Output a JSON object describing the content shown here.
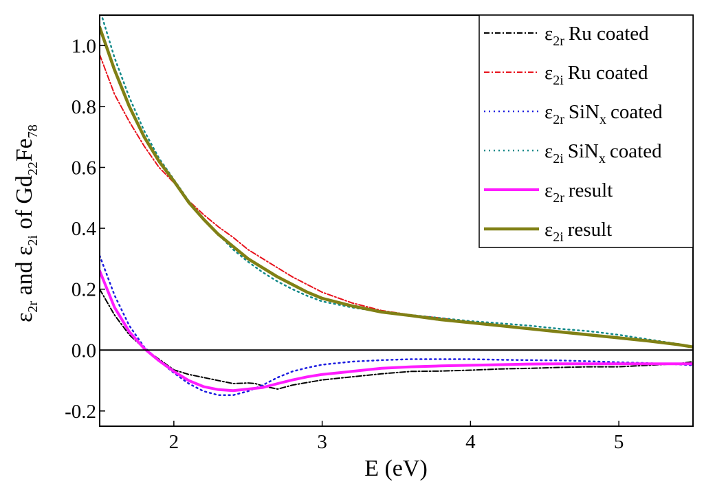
{
  "chart_data": {
    "type": "line",
    "title": "",
    "xlabel": "E (eV)",
    "ylabel": {
      "prefix_symbol": "ε",
      "prefix_sub": "2r",
      "middle": " and ",
      "second_symbol": "ε",
      "second_sub": "2i",
      "of_text": " of Gd",
      "gd_sub": "22",
      "fe_text": "Fe",
      "fe_sub": "78"
    },
    "xlim": [
      1.5,
      5.5
    ],
    "ylim": [
      -0.25,
      1.1
    ],
    "xticks": [
      2,
      3,
      4,
      5
    ],
    "xtick_labels": [
      "2",
      "3",
      "4",
      "5"
    ],
    "yticks": [
      -0.2,
      0.0,
      0.2,
      0.4,
      0.6,
      0.8,
      1.0
    ],
    "ytick_labels": [
      "-0.2",
      "0.0",
      "0.2",
      "0.4",
      "0.6",
      "0.8",
      "1.0"
    ],
    "zero_line": 0.0,
    "legend_position": "top-right",
    "series": [
      {
        "name": "ε2r Ru coated",
        "symbol": "ε",
        "sub": "2r",
        "label": "Ru coated",
        "label_sub": "",
        "label_tail": "",
        "color": "#000000",
        "dash": "8,3,2,3",
        "width": 2,
        "x": [
          1.5,
          1.6,
          1.7,
          1.8,
          1.9,
          2.0,
          2.1,
          2.2,
          2.3,
          2.4,
          2.5,
          2.55,
          2.6,
          2.7,
          2.8,
          3.0,
          3.2,
          3.4,
          3.6,
          3.8,
          4.0,
          4.2,
          4.4,
          4.6,
          4.8,
          5.0,
          5.2,
          5.4,
          5.5
        ],
        "y": [
          0.2,
          0.115,
          0.05,
          0.005,
          -0.03,
          -0.065,
          -0.08,
          -0.09,
          -0.1,
          -0.11,
          -0.108,
          -0.11,
          -0.118,
          -0.128,
          -0.115,
          -0.098,
          -0.088,
          -0.078,
          -0.07,
          -0.069,
          -0.066,
          -0.062,
          -0.06,
          -0.057,
          -0.055,
          -0.055,
          -0.05,
          -0.045,
          -0.038
        ]
      },
      {
        "name": "ε2i Ru coated",
        "symbol": "ε",
        "sub": "2i",
        "label": "Ru coated",
        "label_sub": "",
        "label_tail": "",
        "color": "#e8121c",
        "dash": "8,3,2,3",
        "width": 2,
        "x": [
          1.5,
          1.6,
          1.7,
          1.8,
          1.9,
          2.0,
          2.1,
          2.2,
          2.3,
          2.4,
          2.5,
          2.6,
          2.7,
          2.8,
          2.9,
          3.0,
          3.2,
          3.4,
          3.6,
          3.8,
          4.0,
          4.2,
          4.4,
          4.6,
          4.8,
          5.0,
          5.2,
          5.4,
          5.5
        ],
        "y": [
          0.97,
          0.84,
          0.75,
          0.67,
          0.6,
          0.55,
          0.49,
          0.445,
          0.405,
          0.37,
          0.33,
          0.3,
          0.27,
          0.24,
          0.215,
          0.19,
          0.155,
          0.13,
          0.115,
          0.105,
          0.09,
          0.08,
          0.07,
          0.06,
          0.05,
          0.04,
          0.03,
          0.018,
          0.01
        ]
      },
      {
        "name": "ε2r SiNx coated",
        "symbol": "ε",
        "sub": "2r",
        "label": "SiN",
        "label_sub": "x",
        "label_tail": "coated",
        "color": "#1c1ce0",
        "dash": "2,5",
        "width": 2.5,
        "x": [
          1.5,
          1.6,
          1.7,
          1.8,
          1.9,
          2.0,
          2.1,
          2.2,
          2.3,
          2.4,
          2.5,
          2.6,
          2.7,
          2.8,
          2.9,
          3.0,
          3.2,
          3.4,
          3.6,
          3.8,
          4.0,
          4.2,
          4.4,
          4.6,
          4.8,
          5.0,
          5.2,
          5.4,
          5.5
        ],
        "y": [
          0.31,
          0.18,
          0.08,
          0.01,
          -0.035,
          -0.075,
          -0.11,
          -0.135,
          -0.148,
          -0.148,
          -0.135,
          -0.115,
          -0.09,
          -0.07,
          -0.058,
          -0.048,
          -0.038,
          -0.033,
          -0.03,
          -0.03,
          -0.03,
          -0.032,
          -0.033,
          -0.034,
          -0.037,
          -0.04,
          -0.043,
          -0.047,
          -0.05
        ]
      },
      {
        "name": "ε2i SiNx coated",
        "symbol": "ε",
        "sub": "2i",
        "label": "SiN",
        "label_sub": "x",
        "label_tail": "coated",
        "color": "#138a8a",
        "dash": "2,5",
        "width": 2.5,
        "x": [
          1.5,
          1.6,
          1.7,
          1.8,
          1.9,
          2.0,
          2.1,
          2.2,
          2.3,
          2.4,
          2.5,
          2.6,
          2.7,
          2.8,
          2.9,
          3.0,
          3.2,
          3.4,
          3.6,
          3.8,
          4.0,
          4.2,
          4.4,
          4.6,
          4.8,
          5.0,
          5.2,
          5.4,
          5.5
        ],
        "y": [
          1.12,
          0.96,
          0.83,
          0.72,
          0.63,
          0.56,
          0.49,
          0.43,
          0.38,
          0.33,
          0.29,
          0.255,
          0.225,
          0.2,
          0.178,
          0.16,
          0.14,
          0.125,
          0.115,
          0.105,
          0.095,
          0.088,
          0.08,
          0.07,
          0.062,
          0.05,
          0.035,
          0.02,
          0.012
        ]
      },
      {
        "name": "ε2r result",
        "symbol": "ε",
        "sub": "2r",
        "label": "result",
        "label_sub": "",
        "label_tail": "",
        "color": "#ff1cff",
        "dash": "",
        "width": 4,
        "x": [
          1.5,
          1.6,
          1.7,
          1.8,
          1.9,
          2.0,
          2.1,
          2.2,
          2.3,
          2.4,
          2.5,
          2.6,
          2.7,
          2.8,
          2.9,
          3.0,
          3.2,
          3.4,
          3.6,
          3.8,
          4.0,
          4.2,
          4.4,
          4.6,
          4.8,
          5.0,
          5.2,
          5.4,
          5.5
        ],
        "y": [
          0.26,
          0.14,
          0.06,
          0.005,
          -0.035,
          -0.07,
          -0.1,
          -0.12,
          -0.13,
          -0.133,
          -0.128,
          -0.123,
          -0.11,
          -0.098,
          -0.088,
          -0.08,
          -0.07,
          -0.06,
          -0.055,
          -0.052,
          -0.05,
          -0.048,
          -0.046,
          -0.045,
          -0.045,
          -0.045,
          -0.045,
          -0.045,
          -0.045
        ]
      },
      {
        "name": "ε2i result",
        "symbol": "ε",
        "sub": "2i",
        "label": "result",
        "label_sub": "",
        "label_tail": "",
        "color": "#808015",
        "dash": "",
        "width": 4.5,
        "x": [
          1.5,
          1.6,
          1.7,
          1.8,
          1.9,
          2.0,
          2.1,
          2.2,
          2.3,
          2.4,
          2.5,
          2.6,
          2.7,
          2.8,
          2.9,
          3.0,
          3.2,
          3.4,
          3.6,
          3.8,
          4.0,
          4.2,
          4.4,
          4.6,
          4.8,
          5.0,
          5.2,
          5.4,
          5.5
        ],
        "y": [
          1.06,
          0.92,
          0.8,
          0.7,
          0.62,
          0.555,
          0.485,
          0.43,
          0.38,
          0.34,
          0.3,
          0.27,
          0.24,
          0.215,
          0.19,
          0.17,
          0.145,
          0.125,
          0.113,
          0.1,
          0.09,
          0.08,
          0.07,
          0.06,
          0.05,
          0.04,
          0.03,
          0.018,
          0.01
        ]
      }
    ]
  }
}
